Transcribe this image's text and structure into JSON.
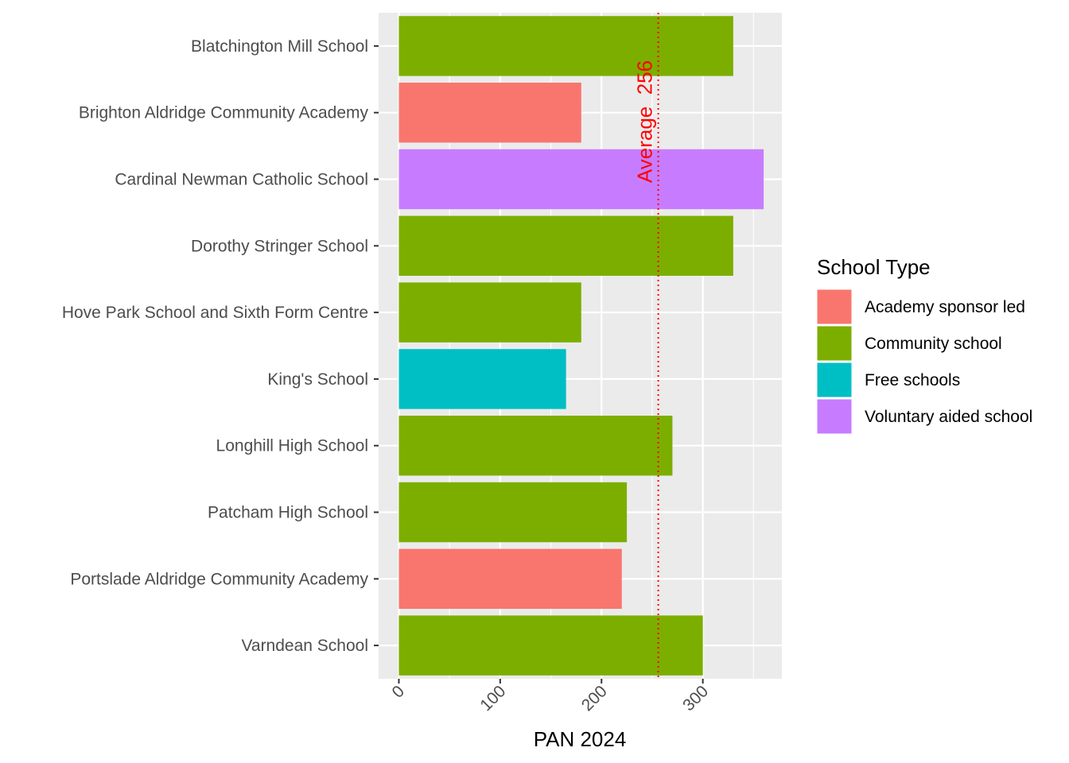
{
  "chart_data": {
    "type": "bar",
    "orientation": "horizontal",
    "categories": [
      "Blatchington Mill School",
      "Brighton Aldridge Community Academy",
      "Cardinal Newman Catholic School",
      "Dorothy Stringer School",
      "Hove Park School and Sixth Form Centre",
      "King's School",
      "Longhill High School",
      "Patcham High School",
      "Portslade Aldridge Community Academy",
      "Varndean School"
    ],
    "values": [
      330,
      180,
      360,
      330,
      180,
      165,
      270,
      225,
      220,
      300
    ],
    "school_types": [
      "Community school",
      "Academy sponsor led",
      "Voluntary aided school",
      "Community school",
      "Community school",
      "Free schools",
      "Community school",
      "Community school",
      "Academy sponsor led",
      "Community school"
    ],
    "xlabel": "PAN 2024",
    "ylabel": "",
    "xlim": [
      -20,
      378
    ],
    "x_ticks": [
      0,
      100,
      200,
      300
    ],
    "x_tick_labels": [
      "0",
      "100",
      "200",
      "300"
    ],
    "grid": true,
    "legend": {
      "title": "School Type",
      "position": "right",
      "entries": [
        {
          "label": "Academy sponsor led",
          "color": "#F8766D"
        },
        {
          "label": "Community school",
          "color": "#7CAE00"
        },
        {
          "label": "Free schools",
          "color": "#00BFC4"
        },
        {
          "label": "Voluntary aided school",
          "color": "#C77CFF"
        }
      ]
    },
    "reference_line": {
      "value": 256,
      "label": "Average  256",
      "color": "#FF0000",
      "style": "dotted"
    },
    "colors": {
      "panel_background": "#EBEBEB",
      "grid_major": "#FFFFFF"
    }
  }
}
